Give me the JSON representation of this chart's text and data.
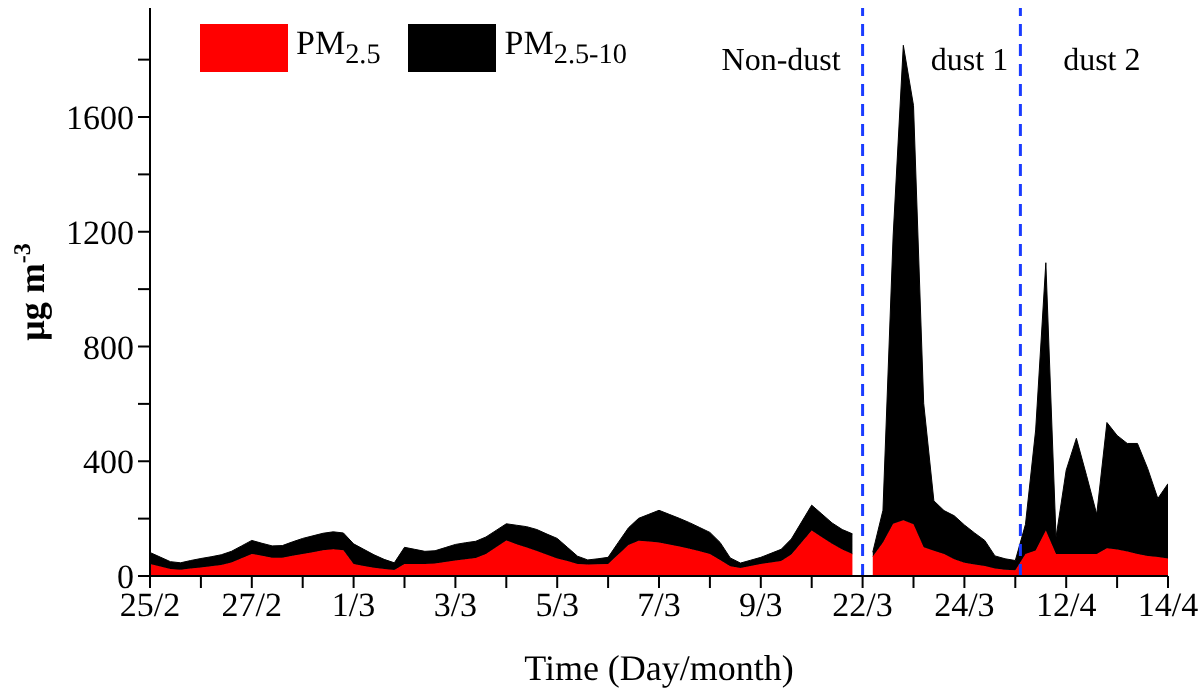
{
  "chart_data": {
    "type": "area",
    "stacked": true,
    "xlabel": "Time (Day/month)",
    "ylabel": "μg m$^{-3}$",
    "categories": [
      "25/2",
      null,
      null,
      null,
      null,
      null,
      null,
      null,
      null,
      null,
      "27/2",
      null,
      null,
      null,
      null,
      null,
      null,
      null,
      null,
      null,
      "1/3",
      null,
      null,
      null,
      null,
      null,
      null,
      null,
      null,
      null,
      "3/3",
      null,
      null,
      null,
      null,
      null,
      null,
      null,
      null,
      null,
      "5/3",
      null,
      null,
      null,
      null,
      null,
      null,
      null,
      null,
      null,
      "7/3",
      null,
      null,
      null,
      null,
      null,
      null,
      null,
      null,
      null,
      "9/3",
      null,
      null,
      null,
      null,
      null,
      null,
      null,
      null,
      null,
      "22/3",
      null,
      null,
      null,
      null,
      null,
      null,
      null,
      null,
      null,
      "24/3",
      null,
      null,
      null,
      null,
      null,
      null,
      null,
      null,
      null,
      "12/4",
      null,
      null,
      null,
      null,
      null,
      null,
      null,
      null,
      null,
      "14/4"
    ],
    "series": [
      {
        "name": "PM$_{2.5}$",
        "color": "#ff0000",
        "values": [
          42,
          33,
          24,
          22,
          26,
          30,
          34,
          38,
          47,
          62,
          77,
          71,
          64,
          64,
          71,
          77,
          83,
          90,
          93,
          90,
          42,
          35,
          29,
          24,
          21,
          42,
          42,
          42,
          44,
          49,
          54,
          58,
          63,
          77,
          100,
          124,
          111,
          99,
          87,
          74,
          61,
          52,
          42,
          40,
          41,
          42,
          75,
          108,
          123,
          120,
          117,
          110,
          103,
          95,
          86,
          77,
          56,
          34,
          28,
          35,
          42,
          47,
          52,
          75,
          117,
          159,
          135,
          112,
          92,
          77,
          null,
          68,
          117,
          182,
          194,
          180,
          100,
          88,
          77,
          58,
          46,
          40,
          35,
          26,
          22,
          20,
          77,
          89,
          159,
          77,
          77,
          77,
          77,
          77,
          97,
          92,
          85,
          77,
          70,
          66,
          61
        ]
      },
      {
        "name": "PM$_{2.5-10}$",
        "color": "#000000",
        "values": [
          40,
          33,
          26,
          24,
          28,
          31,
          33,
          36,
          39,
          43,
          47,
          43,
          41,
          42,
          48,
          54,
          57,
          59,
          61,
          60,
          70,
          58,
          45,
          34,
          25,
          58,
          51,
          44,
          44,
          50,
          56,
          58,
          58,
          59,
          59,
          58,
          66,
          73,
          75,
          72,
          70,
          48,
          27,
          16,
          19,
          23,
          42,
          60,
          78,
          95,
          112,
          105,
          98,
          91,
          83,
          75,
          61,
          29,
          17,
          20,
          23,
          32,
          41,
          54,
          71,
          88,
          81,
          73,
          70,
          70,
          null,
          15,
          112,
          1003,
          1656,
          1460,
          502,
          174,
          151,
          152,
          132,
          110,
          89,
          44,
          38,
          34,
          103,
          420,
          933,
          58,
          292,
          403,
          273,
          138,
          438,
          398,
          377,
          385,
          305,
          204,
          261
        ]
      }
    ],
    "ylim": [
      0,
      1980
    ],
    "yticks": [
      0,
      {
        "value": 200,
        "label": null
      },
      400,
      {
        "value": 600,
        "label": null
      },
      800,
      {
        "value": 1000,
        "label": null
      },
      1200,
      {
        "value": 1400,
        "label": null
      },
      1600,
      {
        "value": 1800,
        "label": null
      }
    ],
    "ref_lines": [
      {
        "axis": "x",
        "value": "22/3",
        "color": "#1a3cff",
        "line_style": "dashed"
      }
    ],
    "annotations": [
      "Non-dust",
      "dust 1",
      "dust 2"
    ],
    "legend": "top left",
    "marker": "none"
  }
}
